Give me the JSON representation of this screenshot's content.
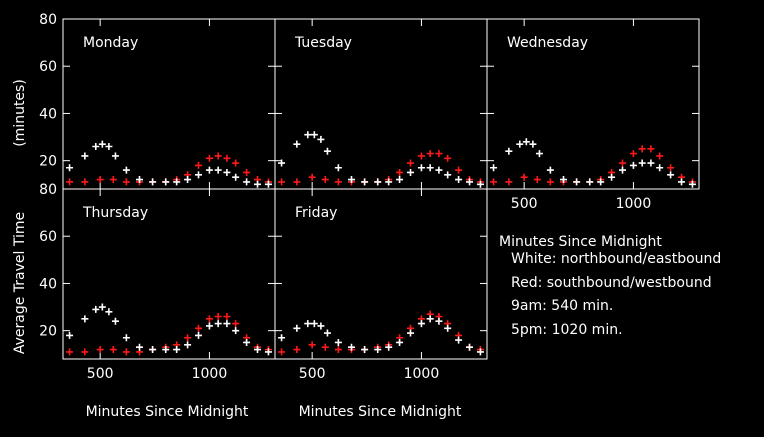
{
  "chart_data": {
    "type": "scatter",
    "ylabel_lines": [
      "Average Travel Time",
      "(minutes)"
    ],
    "xlabel": "Minutes Since Midnight",
    "xlim": [
      330,
      1300
    ],
    "ylim": [
      8,
      80
    ],
    "xticks": [
      500,
      1000
    ],
    "yticks": [
      20,
      40,
      60,
      80
    ],
    "legend": {
      "title": "Minutes Since Midnight",
      "lines": [
        "White: northbound/eastbound",
        "Red: southbound/westbound",
        "9am: 540 min.",
        "5pm: 1020 min."
      ]
    },
    "series_colors": {
      "white": "#ffffff",
      "red": "#ff1a1a"
    },
    "panels": [
      {
        "title": "Monday",
        "white": {
          "x": [
            360,
            430,
            480,
            510,
            540,
            570,
            620,
            680,
            740,
            800,
            850,
            900,
            950,
            1000,
            1040,
            1080,
            1120,
            1170,
            1220,
            1270
          ],
          "y": [
            17,
            22,
            26,
            27,
            26,
            22,
            16,
            12,
            11,
            11,
            11,
            12,
            14,
            16,
            16,
            15,
            13,
            11,
            10,
            10
          ]
        },
        "red": {
          "x": [
            360,
            430,
            500,
            560,
            620,
            680,
            740,
            800,
            850,
            900,
            950,
            1000,
            1040,
            1080,
            1120,
            1170,
            1220,
            1270
          ],
          "y": [
            11,
            11,
            12,
            12,
            11,
            11,
            11,
            11,
            12,
            14,
            18,
            21,
            22,
            21,
            19,
            15,
            12,
            11
          ]
        }
      },
      {
        "title": "Tuesday",
        "white": {
          "x": [
            360,
            430,
            480,
            510,
            540,
            570,
            620,
            680,
            740,
            800,
            850,
            900,
            950,
            1000,
            1040,
            1080,
            1120,
            1170,
            1220,
            1270
          ],
          "y": [
            19,
            27,
            31,
            31,
            29,
            24,
            17,
            12,
            11,
            11,
            11,
            12,
            15,
            17,
            17,
            16,
            14,
            12,
            11,
            10
          ]
        },
        "red": {
          "x": [
            360,
            430,
            500,
            560,
            620,
            680,
            740,
            800,
            850,
            900,
            950,
            1000,
            1040,
            1080,
            1120,
            1170,
            1220,
            1270
          ],
          "y": [
            11,
            11,
            13,
            12,
            11,
            11,
            11,
            11,
            12,
            15,
            19,
            22,
            23,
            23,
            21,
            16,
            12,
            11
          ]
        }
      },
      {
        "title": "Wednesday",
        "white": {
          "x": [
            360,
            430,
            480,
            510,
            540,
            570,
            620,
            680,
            740,
            800,
            850,
            900,
            950,
            1000,
            1040,
            1080,
            1120,
            1170,
            1220,
            1270
          ],
          "y": [
            17,
            24,
            27,
            28,
            27,
            23,
            16,
            12,
            11,
            11,
            11,
            13,
            16,
            18,
            19,
            19,
            17,
            14,
            11,
            10
          ]
        },
        "red": {
          "x": [
            360,
            430,
            500,
            560,
            620,
            680,
            740,
            800,
            850,
            900,
            950,
            1000,
            1040,
            1080,
            1120,
            1170,
            1220,
            1270
          ],
          "y": [
            11,
            11,
            13,
            12,
            11,
            11,
            11,
            11,
            12,
            15,
            19,
            23,
            25,
            25,
            22,
            17,
            13,
            11
          ]
        }
      },
      {
        "title": "Thursday",
        "white": {
          "x": [
            360,
            430,
            480,
            510,
            540,
            570,
            620,
            680,
            740,
            800,
            850,
            900,
            950,
            1000,
            1040,
            1080,
            1120,
            1170,
            1220,
            1270
          ],
          "y": [
            18,
            25,
            29,
            30,
            28,
            24,
            17,
            13,
            12,
            12,
            12,
            14,
            18,
            22,
            23,
            23,
            20,
            15,
            12,
            11
          ]
        },
        "red": {
          "x": [
            360,
            430,
            500,
            560,
            620,
            680,
            740,
            800,
            850,
            900,
            950,
            1000,
            1040,
            1080,
            1120,
            1170,
            1220,
            1270
          ],
          "y": [
            11,
            11,
            12,
            12,
            11,
            11,
            12,
            13,
            14,
            17,
            21,
            25,
            26,
            26,
            23,
            17,
            13,
            12
          ]
        }
      },
      {
        "title": "Friday",
        "white": {
          "x": [
            360,
            430,
            480,
            510,
            540,
            570,
            620,
            680,
            740,
            800,
            850,
            900,
            950,
            1000,
            1040,
            1080,
            1120,
            1170,
            1220,
            1270
          ],
          "y": [
            17,
            21,
            23,
            23,
            22,
            19,
            15,
            13,
            12,
            12,
            13,
            15,
            19,
            23,
            25,
            24,
            21,
            16,
            13,
            11
          ]
        },
        "red": {
          "x": [
            360,
            430,
            500,
            560,
            620,
            680,
            740,
            800,
            850,
            900,
            950,
            1000,
            1040,
            1080,
            1120,
            1170,
            1220,
            1270
          ],
          "y": [
            11,
            12,
            14,
            13,
            12,
            12,
            12,
            13,
            14,
            17,
            21,
            25,
            27,
            26,
            23,
            18,
            13,
            12
          ]
        }
      }
    ]
  }
}
